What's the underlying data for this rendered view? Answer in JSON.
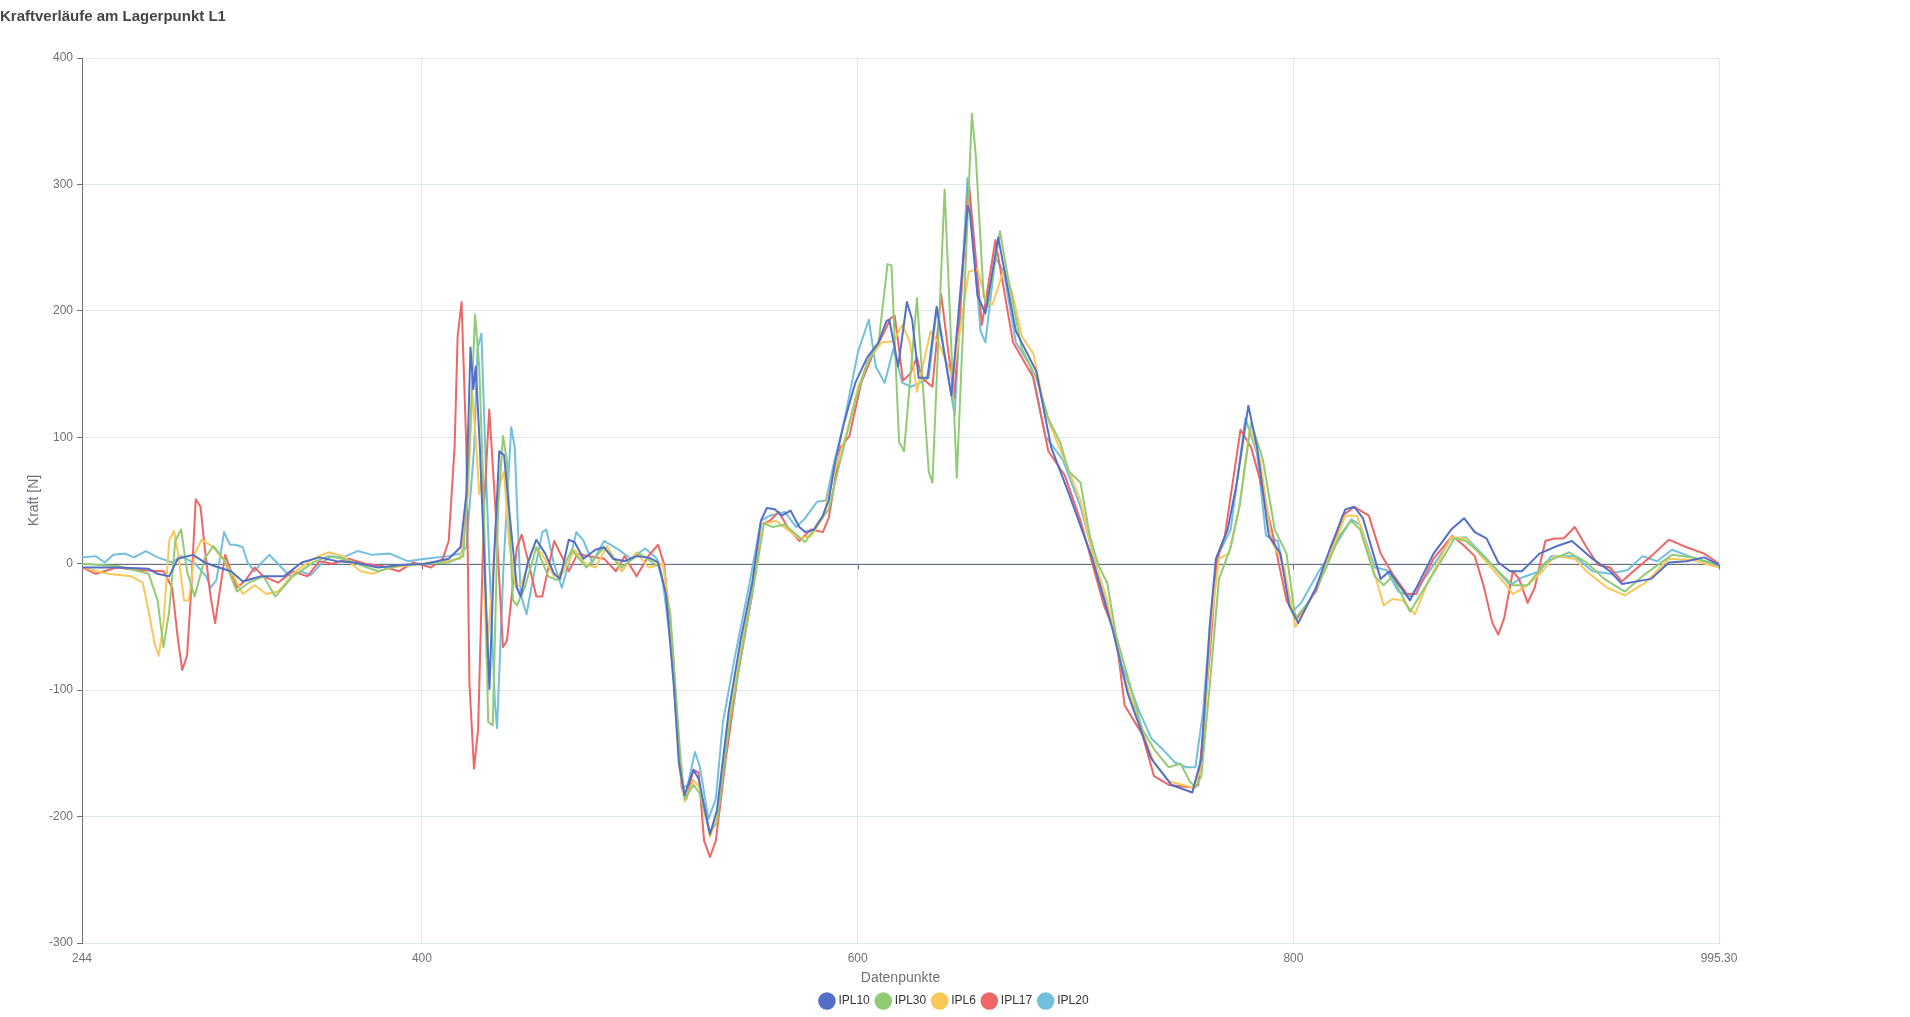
{
  "chart_data": {
    "type": "line",
    "title": "Kraftverläufe am Lagerpunkt L1",
    "xlabel": "Datenpunkte",
    "ylabel": "Kraft [N]",
    "xlim": [
      244,
      995.3
    ],
    "xticks": [
      244,
      400,
      600,
      800,
      {
        "value": 995.3,
        "label": "995.30"
      }
    ],
    "ylim": [
      -300,
      400
    ],
    "yticks": [
      -300,
      -200,
      -100,
      0,
      100,
      200,
      300,
      400
    ],
    "grid": true,
    "legend": "bottom",
    "marker": "none",
    "line_style": "solid",
    "series": [
      {
        "name": "IPL10",
        "color": "#5470c6",
        "x": [
          244,
          261,
          274.6,
          278.7,
          284,
          288,
          294.9,
          300.3,
          305,
          312.4,
          317.8,
          325.9,
          336.7,
          344.8,
          352.9,
          361,
          369,
          379.9,
          390.7,
          401.5,
          412.3,
          417.7,
          420.4,
          422.3,
          423.6,
          424.7,
          426.6,
          431,
          433,
          435.5,
          437.7,
          440.4,
          443.6,
          445.3,
          448.5,
          452.5,
          456.6,
          460.7,
          463.4,
          467.4,
          470.1,
          474.2,
          479.6,
          483.6,
          487.7,
          493,
          498.5,
          503.9,
          508.4,
          512,
          515.5,
          518,
          520.5,
          524.6,
          527,
          532.2,
          535.4,
          540.8,
          546.2,
          551.6,
          555.6,
          558.3,
          561.9,
          565.1,
          569.2,
          573.2,
          575.9,
          580,
          584,
          586.7,
          589.4,
          593.5,
          598.9,
          604.3,
          609.6,
          613.2,
          614.5,
          618.6,
          622.6,
          625,
          628,
          632,
          636.2,
          643,
          650.5,
          651.5,
          655,
          658.6,
          664.5,
          672.6,
          682,
          688.8,
          697,
          707.7,
          717,
          724,
          734.7,
          744,
          753.6,
          757.7,
          761.7,
          764.4,
          769.8,
          774,
          779.3,
          783.3,
          788.7,
          794,
          798,
          802.2,
          810.3,
          817,
          823.8,
          827.9,
          831.9,
          840,
          844,
          853.5,
          864.3,
          872.4,
          878.3,
          883.2,
          888.6,
          894,
          899.4,
          904.8,
          912.9,
          921,
          927.8,
          937.2,
          945.3,
          950.7,
          964.2,
          972.3,
          980.4,
          988.5,
          995.3
        ],
        "values": [
          -3,
          -3,
          -4,
          -8,
          -10,
          4,
          7,
          1,
          -2,
          -6,
          -14,
          -10,
          -10,
          1,
          5,
          2,
          1,
          -3,
          -1,
          0,
          4,
          13,
          55,
          171,
          138,
          156,
          92,
          -99,
          0,
          89,
          86,
          36,
          -19,
          -26,
          0,
          19,
          8,
          -8,
          -12,
          19,
          17,
          4,
          11,
          13,
          4,
          2,
          6,
          5,
          1,
          -24,
          -94,
          -158,
          -183,
          -163,
          -170,
          -214,
          -195,
          -117,
          -61,
          -15,
          34,
          44,
          43,
          38,
          42,
          29,
          25,
          27,
          38,
          50,
          78,
          110,
          143,
          163,
          175,
          192,
          193,
          156,
          207,
          193,
          147,
          147,
          203,
          133,
          283,
          278,
          212,
          198,
          258,
          184,
          152,
          92,
          55,
          4,
          -52,
          -103,
          -154,
          -175,
          -181,
          -154,
          -47,
          4,
          27,
          64,
          125,
          92,
          22,
          8,
          -33,
          -47,
          -19,
          13,
          43,
          45,
          36,
          -12,
          -6,
          -29,
          8,
          27,
          36,
          25,
          20,
          1,
          -6,
          -6,
          8,
          14,
          18,
          4,
          -6,
          -16,
          -12,
          1,
          2,
          5,
          -1
        ]
      },
      {
        "name": "IPL30",
        "color": "#91cc75",
        "x": [
          244,
          261,
          274.6,
          278.7,
          281.4,
          284,
          286.8,
          289.5,
          292.2,
          295.7,
          300.3,
          304.3,
          309,
          315.1,
          320.5,
          327.3,
          332.7,
          340.7,
          350.2,
          357,
          363.7,
          371.8,
          379.9,
          390,
          401,
          412.3,
          419,
          421.8,
          424.4,
          426.3,
          428.5,
          430.4,
          432.5,
          435,
          437.2,
          439,
          441.8,
          443.6,
          447.2,
          452.5,
          458,
          462,
          468.8,
          475.5,
          483.6,
          491.7,
          499.8,
          509.3,
          514,
          518.5,
          520.6,
          524.6,
          527.3,
          532.2,
          535.4,
          540.8,
          546.2,
          553,
          557,
          561,
          566.5,
          570.5,
          575.9,
          581.3,
          586.7,
          592.1,
          598.9,
          604.3,
          609.6,
          613.7,
          615.5,
          619,
          621.3,
          627.2,
          632.6,
          634.3,
          639.9,
          645.5,
          652.4,
          654.2,
          657.8,
          659.6,
          665.3,
          668.5,
          675.3,
          682,
          687.5,
          692.9,
          696.9,
          702.3,
          706.4,
          710.4,
          714.5,
          718.5,
          725.3,
          730.6,
          736.1,
          742.8,
          748.2,
          752.3,
          755,
          757.7,
          761.7,
          765.8,
          771.2,
          775.2,
          780.6,
          786,
          791.4,
          796.8,
          800.9,
          807.6,
          814.3,
          821.1,
          826.5,
          830.6,
          837.3,
          841.4,
          845.4,
          853.5,
          861.6,
          868.4,
          873.8,
          879.1,
          885.9,
          894,
          900.7,
          907.5,
          915.6,
          926.4,
          934.5,
          942.6,
          952.1,
          961.5,
          973.7,
          983.1,
          995.3
        ],
        "values": [
          0,
          -2,
          -8,
          -29,
          -66,
          -38,
          18,
          27,
          -6,
          -26,
          4,
          14,
          4,
          -22,
          -15,
          -10,
          -26,
          -10,
          1,
          6,
          4,
          -1,
          -6,
          -1,
          0,
          1,
          6,
          92,
          197,
          156,
          45,
          -125,
          -128,
          45,
          101,
          82,
          -29,
          -33,
          -19,
          13,
          -10,
          -13,
          11,
          -3,
          13,
          -3,
          8,
          -3,
          -40,
          -150,
          -186,
          -175,
          -181,
          -212,
          -205,
          -131,
          -75,
          -10,
          32,
          29,
          31,
          25,
          17,
          31,
          43,
          82,
          129,
          159,
          175,
          237,
          236,
          96,
          89,
          210,
          73,
          64,
          296,
          68,
          356,
          323,
          212,
          203,
          263,
          231,
          170,
          147,
          115,
          96,
          73,
          64,
          23,
          -1,
          -15,
          -56,
          -98,
          -131,
          -147,
          -161,
          -158,
          -172,
          -177,
          -168,
          -94,
          -12,
          13,
          45,
          112,
          82,
          27,
          8,
          -43,
          -29,
          -6,
          22,
          34,
          27,
          -10,
          -17,
          -10,
          -38,
          -15,
          4,
          20,
          18,
          8,
          -6,
          -17,
          -17,
          1,
          9,
          1,
          -12,
          -22,
          -8,
          7,
          5,
          -1
        ]
      },
      {
        "name": "IPL6",
        "color": "#fac858",
        "x": [
          244,
          255.7,
          266.5,
          271.9,
          274.6,
          277.3,
          279.2,
          281.4,
          284,
          286.2,
          288.1,
          290.8,
          293,
          295.7,
          298.9,
          304.3,
          309.7,
          313.7,
          317.8,
          323.2,
          328.6,
          334,
          342.1,
          350.2,
          357,
          363.7,
          371.8,
          377.2,
          385.3,
          396,
          409.6,
          417.7,
          421.2,
          423.1,
          425,
          426.3,
          427.5,
          429.6,
          432.3,
          435,
          437.7,
          439.9,
          443.1,
          446,
          451.2,
          455,
          460.7,
          464.5,
          470.1,
          475,
          479.6,
          485,
          491.7,
          498.5,
          503.9,
          510.6,
          513.8,
          517.9,
          520.6,
          524.6,
          527.3,
          532.2,
          535.4,
          540.8,
          546.2,
          551.6,
          555.6,
          562.4,
          567.8,
          573.2,
          578.6,
          584,
          589.4,
          594.8,
          600.2,
          605.6,
          611,
          616.4,
          620.5,
          624,
          627.2,
          633.5,
          637,
          643.7,
          651,
          655,
          659.1,
          661.8,
          667.2,
          671.3,
          675.3,
          680.7,
          686.1,
          694.2,
          702.3,
          707.7,
          714.5,
          721.2,
          729.3,
          736.1,
          742.8,
          753.6,
          757.7,
          762.2,
          765.8,
          770.3,
          775.2,
          780,
          784.7,
          790,
          795.5,
          800.9,
          809,
          817,
          823.8,
          829.2,
          834.6,
          841.4,
          845.4,
          850,
          855.7,
          861.6,
          872.4,
          879.1,
          887.2,
          896.7,
          900.7,
          907.5,
          914.3,
          919.7,
          929.1,
          934.5,
          944,
          952.1,
          961.5,
          972.3,
          983.1,
          995.3
        ],
        "values": [
          -3,
          -8,
          -10,
          -15,
          -38,
          -63,
          -73,
          -47,
          18,
          26,
          8,
          -29,
          -29,
          8,
          19,
          13,
          1,
          -10,
          -24,
          -17,
          -24,
          -22,
          -6,
          4,
          9,
          6,
          -6,
          -8,
          -3,
          -1,
          2,
          4,
          55,
          136,
          92,
          55,
          68,
          -75,
          -17,
          59,
          73,
          18,
          -19,
          -15,
          13,
          8,
          -10,
          -8,
          11,
          0,
          -3,
          14,
          -6,
          9,
          -3,
          0,
          -38,
          -158,
          -188,
          -171,
          -177,
          -216,
          -200,
          -126,
          -70,
          -19,
          31,
          34,
          27,
          20,
          22,
          36,
          73,
          103,
          140,
          163,
          175,
          176,
          189,
          175,
          136,
          184,
          175,
          147,
          231,
          233,
          207,
          205,
          233,
          212,
          180,
          166,
          119,
          85,
          50,
          8,
          -29,
          -84,
          -126,
          -158,
          -172,
          -177,
          -163,
          -47,
          4,
          8,
          45,
          108,
          82,
          18,
          -1,
          -50,
          -24,
          8,
          38,
          38,
          8,
          -33,
          -28,
          -29,
          -40,
          -15,
          21,
          20,
          4,
          -15,
          -24,
          -17,
          -6,
          6,
          4,
          -6,
          -19,
          -25,
          -15,
          4,
          3,
          -3
        ]
      },
      {
        "name": "IPL17",
        "color": "#ee6666",
        "x": [
          244,
          250.3,
          260,
          269.2,
          281.4,
          285.4,
          288.1,
          290,
          292.2,
          294,
          296.2,
          298.4,
          300.3,
          303,
          305.1,
          307,
          309.7,
          312.4,
          315.1,
          319.1,
          323.2,
          327.3,
          334,
          340.7,
          347.5,
          352.9,
          359,
          366.4,
          374,
          382,
          389.4,
          396.1,
          404.2,
          409.6,
          412.3,
          415,
          416.4,
          418.2,
          420.4,
          421.8,
          423.9,
          425.8,
          428.5,
          430.9,
          433.7,
          437.2,
          439,
          443.6,
          445.8,
          449.9,
          452.5,
          455.2,
          460.7,
          464.7,
          467.4,
          471.5,
          476.5,
          483.6,
          489,
          493,
          498.5,
          503.9,
          508.4,
          511.1,
          515.2,
          519.2,
          521.4,
          524.6,
          527,
          529.5,
          532.2,
          534.9,
          539.5,
          544.9,
          551.6,
          555.6,
          559.7,
          563.8,
          567.8,
          573.2,
          578.6,
          584,
          586.7,
          592.1,
          596.2,
          601.6,
          607,
          612.4,
          615,
          617,
          620.8,
          624,
          627.2,
          629.4,
          634.3,
          638.3,
          644.3,
          651,
          657,
          663.2,
          671.3,
          680.7,
          687.5,
          695,
          702.3,
          707.7,
          713,
          718.5,
          722.5,
          730.6,
          736,
          742.8,
          753.6,
          756.3,
          761.7,
          765,
          768.5,
          775.7,
          780.6,
          784.7,
          790,
          796.8,
          801.7,
          810.3,
          817,
          822.5,
          827.9,
          834.6,
          840,
          845.4,
          852.1,
          856.2,
          864.3,
          872.9,
          877.8,
          883.2,
          887.2,
          891.3,
          894,
          896.7,
          900.7,
          903.5,
          907.5,
          910.7,
          915.6,
          919.7,
          924,
          929.1,
          934.5,
          939.9,
          945.3,
          950.7,
          956,
          964.2,
          972.3,
          980.4,
          988.5,
          995.3
        ],
        "values": [
          -3,
          -8,
          -3,
          -5,
          -6,
          -19,
          -61,
          -84,
          -73,
          -24,
          51,
          45,
          13,
          -26,
          -47,
          -24,
          7,
          -6,
          -19,
          -13,
          -3,
          -10,
          -15,
          -6,
          -10,
          2,
          0,
          4,
          0,
          -2,
          -6,
          1,
          -3,
          4,
          18,
          92,
          180,
          207,
          92,
          -94,
          -162,
          -131,
          45,
          122,
          45,
          -66,
          -61,
          13,
          23,
          -6,
          -26,
          -26,
          18,
          4,
          -6,
          8,
          6,
          4,
          -6,
          6,
          -10,
          6,
          15,
          0,
          -70,
          -177,
          -186,
          -163,
          -165,
          -219,
          -232,
          -219,
          -154,
          -89,
          -24,
          31,
          34,
          41,
          29,
          18,
          27,
          25,
          36,
          92,
          101,
          143,
          166,
          184,
          194,
          196,
          145,
          150,
          163,
          147,
          140,
          213,
          131,
          302,
          189,
          256,
          175,
          147,
          89,
          70,
          34,
          0,
          -33,
          -56,
          -112,
          -135,
          -168,
          -175,
          -177,
          -175,
          -70,
          4,
          22,
          106,
          92,
          66,
          27,
          -29,
          -43,
          -22,
          8,
          38,
          45,
          38,
          8,
          -8,
          -24,
          -24,
          4,
          22,
          15,
          6,
          -17,
          -47,
          -56,
          -43,
          -6,
          -12,
          -31,
          -19,
          18,
          20,
          20,
          29,
          13,
          -1,
          -3,
          -14,
          -6,
          6,
          19,
          13,
          8,
          0
        ]
      },
      {
        "name": "IPL20",
        "color": "#73c0de",
        "x": [
          244,
          250.3,
          254.4,
          258.4,
          263.8,
          267.9,
          273.3,
          278.7,
          285.4,
          289.5,
          296,
          301,
          303,
          305.7,
          309.2,
          311.9,
          314.5,
          317.8,
          320,
          323.2,
          326,
          330,
          334,
          339.4,
          344.8,
          348.9,
          354.3,
          358.3,
          363.7,
          370.5,
          377.2,
          385.3,
          393.4,
          401.5,
          412.3,
          417.7,
          420.4,
          424,
          425.5,
          427.3,
          429.8,
          432.3,
          433.5,
          434.5,
          437.5,
          441,
          442.6,
          445.3,
          448,
          451.2,
          455.3,
          457.1,
          460.6,
          464.2,
          467.4,
          470.9,
          474.2,
          478.2,
          483.6,
          490.4,
          495.8,
          502.5,
          507.9,
          510.6,
          514.7,
          518.2,
          520.1,
          522,
          525.3,
          527.5,
          531.5,
          534.9,
          538.1,
          543.5,
          550.2,
          555.6,
          559.7,
          566.5,
          571.8,
          575.9,
          581.3,
          585.4,
          589.4,
          593.5,
          600.2,
          605.1,
          608.3,
          612.4,
          616.4,
          620.5,
          624.5,
          628.5,
          632.6,
          636.4,
          644.5,
          650.4,
          653.7,
          656.4,
          658.6,
          663.2,
          667,
          672.6,
          679.4,
          686.1,
          694.2,
          702.3,
          709,
          715.8,
          721.2,
          729.3,
          734.7,
          740.1,
          745.5,
          750.9,
          755,
          758.5,
          761.7,
          765.8,
          771.2,
          777.9,
          783.3,
          787.4,
          792.8,
          799.5,
          803.5,
          811.7,
          817,
          826.5,
          830.6,
          837.3,
          842.7,
          848.1,
          853.5,
          861.6,
          872.4,
          879.1,
          888.6,
          899.4,
          904.8,
          912.9,
          918.3,
          929.1,
          937.2,
          945.3,
          953.4,
          960.2,
          966.9,
          973.7,
          983.1,
          995.3
        ],
        "values": [
          5,
          6,
          1,
          7,
          8,
          5,
          10,
          5,
          1,
          6,
          0,
          -10,
          -19,
          -13,
          25,
          15,
          15,
          13,
          1,
          -6,
          0,
          7,
          0,
          -10,
          -6,
          -9,
          1,
          6,
          5,
          10,
          7,
          8,
          2,
          4,
          6,
          8,
          13,
          92,
          170,
          182,
          53,
          -60,
          -110,
          -130,
          0,
          108,
          92,
          -24,
          -40,
          -10,
          25,
          27,
          0,
          -19,
          0,
          25,
          18,
          1,
          18,
          11,
          4,
          12,
          4,
          -15,
          -70,
          -158,
          -177,
          -175,
          -149,
          -160,
          -202,
          -186,
          -126,
          -75,
          -17,
          34,
          38,
          41,
          29,
          36,
          49,
          50,
          82,
          110,
          168,
          193,
          156,
          143,
          170,
          143,
          140,
          143,
          147,
          203,
          117,
          305,
          241,
          184,
          175,
          242,
          231,
          175,
          156,
          101,
          82,
          45,
          1,
          -43,
          -80,
          -117,
          -138,
          -147,
          -157,
          -161,
          -161,
          -117,
          -47,
          8,
          27,
          115,
          87,
          22,
          18,
          -38,
          -31,
          -6,
          8,
          35,
          31,
          -3,
          -5,
          -22,
          -26,
          -8,
          20,
          21,
          4,
          -17,
          -11,
          -6,
          6,
          6,
          -6,
          -8,
          -5,
          6,
          2,
          11,
          5,
          -2
        ]
      }
    ]
  }
}
